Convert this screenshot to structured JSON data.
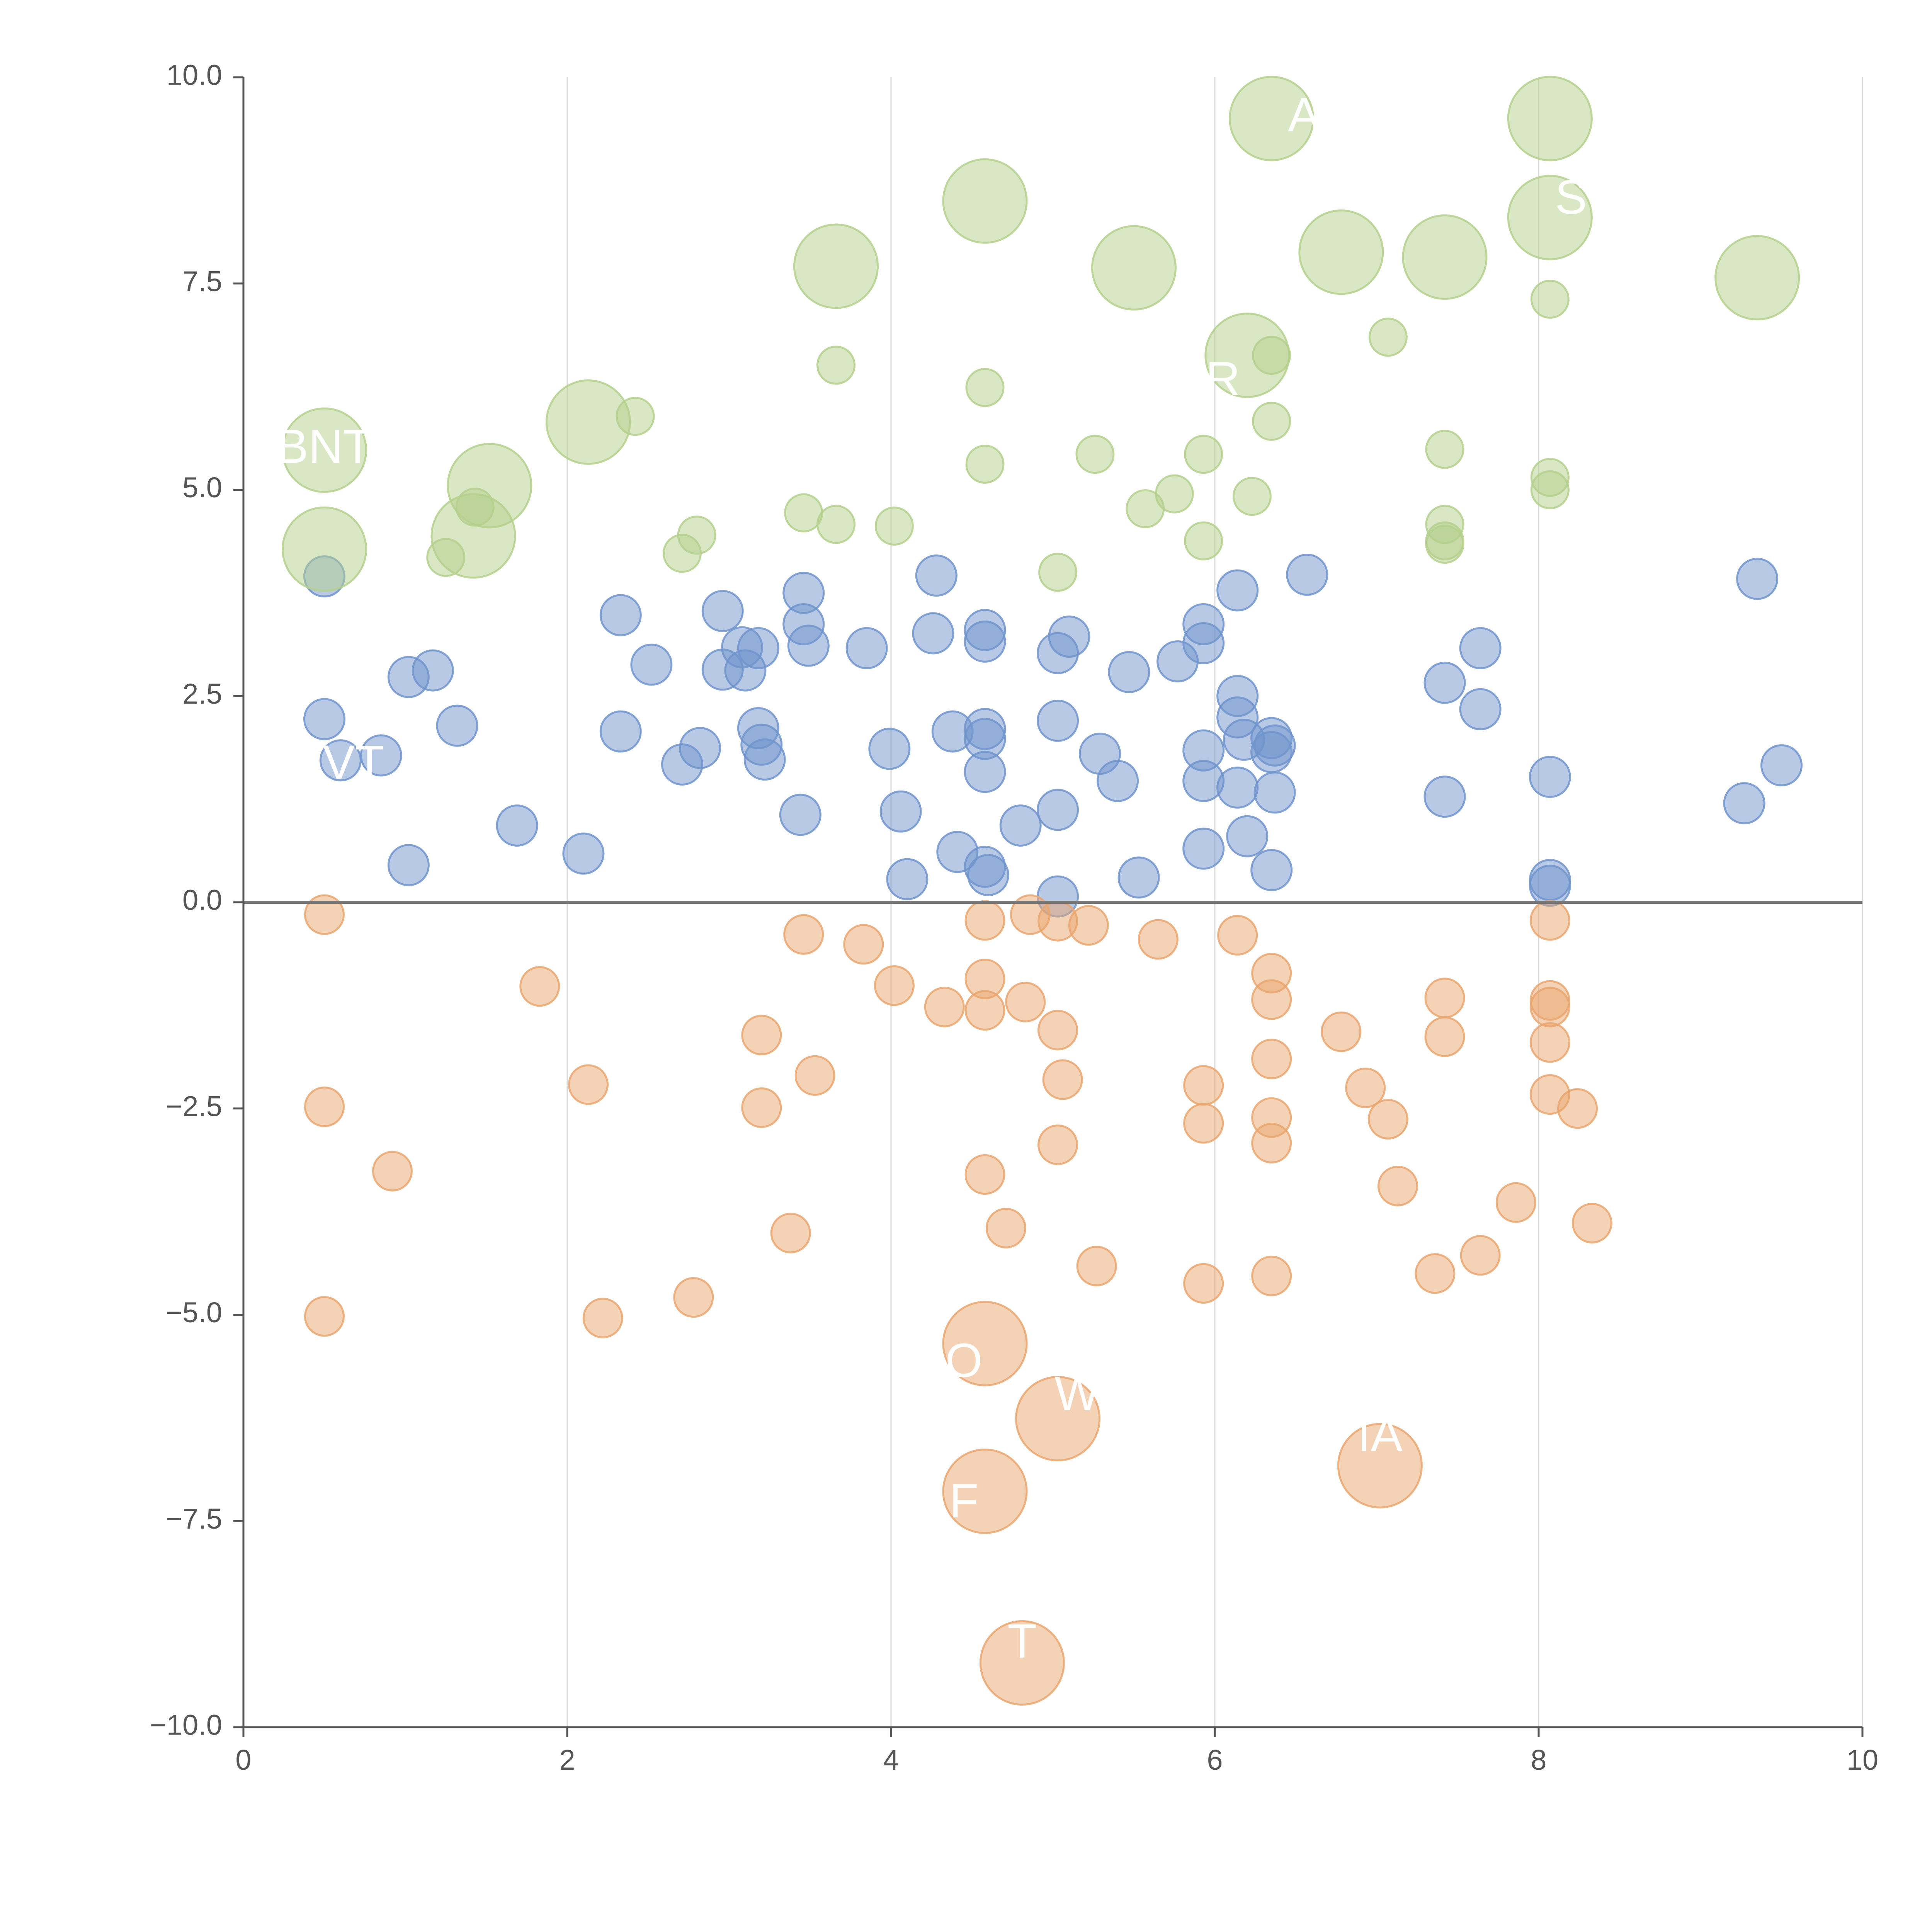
{
  "chart_data": {
    "type": "scatter",
    "title": "",
    "xlabel": "",
    "ylabel": "",
    "xlim": [
      0,
      10
    ],
    "ylim": [
      -10,
      10
    ],
    "grid": "vertical",
    "x_ticks": [
      "0",
      "2",
      "4",
      "6",
      "8",
      "10"
    ],
    "y_ticks": [
      "10.0",
      "7.5",
      "5.0",
      "2.5",
      "0.0",
      "−2.5",
      "−5.0",
      "−7.5",
      "−10.0"
    ],
    "zero_line": 0,
    "colors": {
      "blue": "#7094cc",
      "green": "#b4d08c",
      "orange": "#e9a66e",
      "axis": "#555555",
      "grid": "#d9d9d9"
    },
    "series": [
      {
        "name": "blue",
        "points": [
          [
            0.5,
            3.95
          ],
          [
            0.5,
            2.22
          ],
          [
            0.6,
            1.72
          ],
          [
            0.85,
            1.78
          ],
          [
            1.02,
            2.73
          ],
          [
            1.17,
            2.81
          ],
          [
            1.32,
            2.14
          ],
          [
            1.02,
            0.45
          ],
          [
            1.69,
            0.93
          ],
          [
            2.1,
            0.59
          ],
          [
            2.33,
            3.48
          ],
          [
            2.33,
            2.07
          ],
          [
            2.52,
            2.88
          ],
          [
            2.71,
            1.67
          ],
          [
            2.82,
            1.87
          ],
          [
            2.96,
            3.53
          ],
          [
            2.96,
            2.82
          ],
          [
            3.08,
            3.09
          ],
          [
            3.1,
            2.81
          ],
          [
            3.18,
            3.08
          ],
          [
            3.18,
            2.11
          ],
          [
            3.2,
            1.91
          ],
          [
            3.22,
            1.73
          ],
          [
            3.44,
            1.06
          ],
          [
            3.46,
            3.75
          ],
          [
            3.46,
            3.37
          ],
          [
            3.49,
            3.11
          ],
          [
            3.85,
            3.08
          ],
          [
            3.99,
            1.86
          ],
          [
            4.06,
            1.1
          ],
          [
            4.1,
            0.28
          ],
          [
            4.28,
            3.96
          ],
          [
            4.26,
            3.26
          ],
          [
            4.38,
            2.07
          ],
          [
            4.41,
            0.61
          ],
          [
            4.58,
            3.3
          ],
          [
            4.58,
            3.16
          ],
          [
            4.58,
            2.1
          ],
          [
            4.58,
            1.98
          ],
          [
            4.58,
            1.58
          ],
          [
            4.58,
            0.43
          ],
          [
            4.6,
            0.33
          ],
          [
            4.8,
            0.93
          ],
          [
            5.03,
            3.02
          ],
          [
            5.03,
            2.2
          ],
          [
            5.03,
            1.12
          ],
          [
            5.03,
            0.07
          ],
          [
            5.1,
            3.22
          ],
          [
            5.29,
            1.8
          ],
          [
            5.4,
            1.47
          ],
          [
            5.47,
            2.79
          ],
          [
            5.53,
            0.3
          ],
          [
            5.77,
            2.92
          ],
          [
            5.93,
            3.37
          ],
          [
            5.93,
            3.14
          ],
          [
            5.93,
            1.84
          ],
          [
            5.93,
            1.47
          ],
          [
            5.93,
            0.65
          ],
          [
            6.14,
            3.78
          ],
          [
            6.14,
            2.5
          ],
          [
            6.14,
            2.24
          ],
          [
            6.14,
            1.39
          ],
          [
            6.2,
            0.8
          ],
          [
            6.18,
            1.97
          ],
          [
            6.35,
            1.99
          ],
          [
            6.35,
            1.82
          ],
          [
            6.37,
            1.9
          ],
          [
            6.37,
            1.33
          ],
          [
            6.35,
            0.39
          ],
          [
            6.57,
            3.97
          ],
          [
            7.42,
            2.66
          ],
          [
            7.42,
            1.28
          ],
          [
            7.64,
            3.08
          ],
          [
            7.64,
            2.34
          ],
          [
            8.07,
            1.52
          ],
          [
            8.07,
            0.27
          ],
          [
            8.07,
            0.2
          ],
          [
            9.35,
            3.92
          ],
          [
            9.27,
            1.2
          ],
          [
            9.5,
            1.66
          ]
        ]
      },
      {
        "name": "green",
        "points": [
          [
            0.5,
            5.48,
            "big"
          ],
          [
            0.5,
            4.28,
            "big"
          ],
          [
            1.42,
            4.44,
            "big"
          ],
          [
            1.52,
            5.05,
            "big"
          ],
          [
            1.25,
            4.18,
            "small"
          ],
          [
            1.43,
            4.79,
            "small"
          ],
          [
            2.13,
            5.82,
            "big"
          ],
          [
            2.42,
            5.89,
            "small"
          ],
          [
            2.71,
            4.23,
            "small"
          ],
          [
            2.8,
            4.45,
            "small"
          ],
          [
            3.46,
            4.72,
            "small"
          ],
          [
            3.66,
            4.58,
            "small"
          ],
          [
            3.66,
            6.51,
            "small"
          ],
          [
            3.66,
            7.71,
            "big"
          ],
          [
            4.02,
            4.56,
            "small"
          ],
          [
            4.58,
            8.5,
            "big"
          ],
          [
            4.58,
            6.24,
            "small"
          ],
          [
            4.58,
            5.31,
            "small"
          ],
          [
            5.03,
            4.0,
            "small"
          ],
          [
            5.26,
            5.43,
            "small"
          ],
          [
            5.5,
            7.69,
            "big"
          ],
          [
            5.57,
            4.77,
            "small"
          ],
          [
            5.75,
            4.95,
            "small"
          ],
          [
            5.93,
            5.43,
            "small"
          ],
          [
            5.93,
            4.38,
            "small"
          ],
          [
            6.2,
            6.63,
            "big"
          ],
          [
            6.35,
            6.63,
            "small"
          ],
          [
            6.35,
            5.83,
            "small"
          ],
          [
            6.23,
            4.92,
            "small"
          ],
          [
            6.35,
            9.5,
            "big"
          ],
          [
            6.78,
            7.88,
            "big"
          ],
          [
            7.07,
            6.85,
            "small"
          ],
          [
            7.42,
            7.82,
            "big"
          ],
          [
            7.42,
            5.49,
            "small"
          ],
          [
            7.42,
            4.58,
            "small"
          ],
          [
            7.42,
            4.38,
            "small"
          ],
          [
            7.42,
            4.34,
            "small"
          ],
          [
            8.07,
            9.5,
            "big"
          ],
          [
            8.07,
            8.3,
            "big"
          ],
          [
            8.07,
            7.31,
            "small"
          ],
          [
            8.07,
            5.15,
            "small"
          ],
          [
            8.07,
            5.0,
            "small"
          ],
          [
            9.35,
            7.57,
            "big"
          ]
        ]
      },
      {
        "name": "orange",
        "points": [
          [
            0.5,
            -0.15,
            "small"
          ],
          [
            0.5,
            -2.48,
            "small"
          ],
          [
            0.5,
            -5.02,
            "small"
          ],
          [
            0.92,
            -3.26,
            "small"
          ],
          [
            1.83,
            -1.02,
            "small"
          ],
          [
            2.13,
            -2.21,
            "small"
          ],
          [
            2.22,
            -5.04,
            "small"
          ],
          [
            2.78,
            -4.79,
            "small"
          ],
          [
            3.2,
            -1.61,
            "small"
          ],
          [
            3.2,
            -2.49,
            "small"
          ],
          [
            3.38,
            -4.01,
            "small"
          ],
          [
            3.46,
            -0.39,
            "small"
          ],
          [
            3.53,
            -2.1,
            "small"
          ],
          [
            3.83,
            -0.51,
            "small"
          ],
          [
            4.02,
            -1.01,
            "small"
          ],
          [
            4.33,
            -1.27,
            "small"
          ],
          [
            4.58,
            -0.22,
            "small"
          ],
          [
            4.58,
            -0.93,
            "small"
          ],
          [
            4.58,
            -1.31,
            "small"
          ],
          [
            4.58,
            -3.3,
            "small"
          ],
          [
            4.58,
            -5.35,
            "big"
          ],
          [
            4.58,
            -7.14,
            "big"
          ],
          [
            4.71,
            -3.95,
            "small"
          ],
          [
            4.81,
            -9.22,
            "big"
          ],
          [
            4.83,
            -1.21,
            "small"
          ],
          [
            4.86,
            -0.15,
            "small"
          ],
          [
            5.03,
            -0.23,
            "small"
          ],
          [
            5.03,
            -1.55,
            "small"
          ],
          [
            5.03,
            -2.94,
            "small"
          ],
          [
            5.03,
            -6.26,
            "big"
          ],
          [
            5.06,
            -2.15,
            "small"
          ],
          [
            5.22,
            -0.28,
            "small"
          ],
          [
            5.27,
            -4.41,
            "small"
          ],
          [
            5.65,
            -0.45,
            "small"
          ],
          [
            5.93,
            -2.22,
            "small"
          ],
          [
            5.93,
            -2.68,
            "small"
          ],
          [
            5.93,
            -4.62,
            "small"
          ],
          [
            6.14,
            -0.4,
            "small"
          ],
          [
            6.35,
            -0.86,
            "small"
          ],
          [
            6.35,
            -1.18,
            "small"
          ],
          [
            6.35,
            -1.9,
            "small"
          ],
          [
            6.35,
            -2.61,
            "small"
          ],
          [
            6.35,
            -2.92,
            "small"
          ],
          [
            6.35,
            -4.53,
            "small"
          ],
          [
            6.78,
            -1.57,
            "small"
          ],
          [
            6.93,
            -2.25,
            "small"
          ],
          [
            7.02,
            -6.83,
            "big"
          ],
          [
            7.07,
            -2.63,
            "small"
          ],
          [
            7.13,
            -3.44,
            "small"
          ],
          [
            7.36,
            -4.5,
            "small"
          ],
          [
            7.42,
            -1.16,
            "small"
          ],
          [
            7.42,
            -1.63,
            "small"
          ],
          [
            7.64,
            -4.28,
            "small"
          ],
          [
            7.86,
            -3.64,
            "small"
          ],
          [
            8.07,
            -0.22,
            "small"
          ],
          [
            8.07,
            -1.19,
            "small"
          ],
          [
            8.07,
            -1.27,
            "small"
          ],
          [
            8.07,
            -1.7,
            "small"
          ],
          [
            8.07,
            -2.33,
            "small"
          ],
          [
            8.24,
            -2.5,
            "small"
          ],
          [
            8.33,
            -3.89,
            "small"
          ]
        ]
      }
    ],
    "annotations": [
      {
        "text": "BNT",
        "x": 0.5,
        "y": 5.48
      },
      {
        "text": "VT",
        "x": 0.68,
        "y": 1.65
      },
      {
        "text": "R",
        "x": 6.05,
        "y": 6.3
      },
      {
        "text": "A",
        "x": 6.55,
        "y": 9.5
      },
      {
        "text": "S",
        "x": 8.2,
        "y": 8.5
      },
      {
        "text": "O",
        "x": 4.45,
        "y": -5.6
      },
      {
        "text": "W",
        "x": 5.15,
        "y": -6.0
      },
      {
        "text": "F",
        "x": 4.45,
        "y": -7.3
      },
      {
        "text": "IA",
        "x": 7.02,
        "y": -6.5
      },
      {
        "text": "T",
        "x": 4.81,
        "y": -9.0
      }
    ]
  }
}
